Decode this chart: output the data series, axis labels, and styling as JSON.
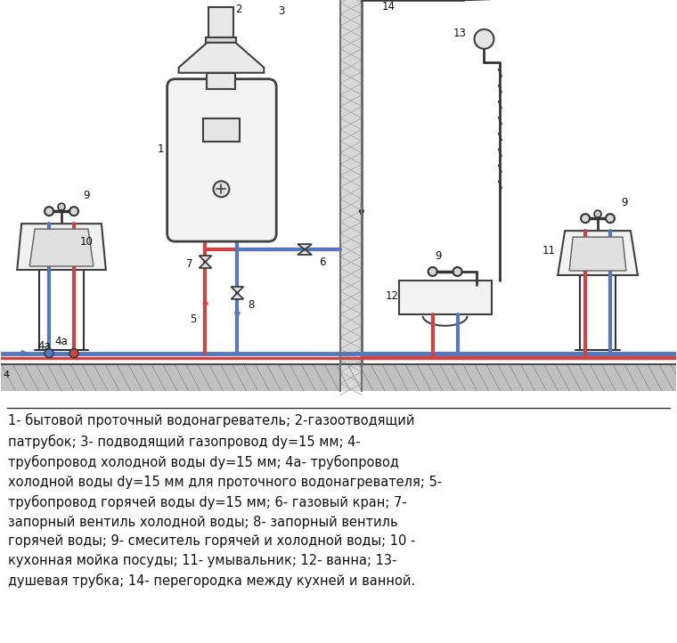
{
  "background_color": "#ffffff",
  "cold_color": "#5577bb",
  "hot_color": "#cc4444",
  "pipe_dark": "#333333",
  "wall_fill": "#cccccc",
  "text_color": "#111111",
  "legend": "1- бытовой проточный водонагреватель; 2-газоотводящий\nпатрубок; 3- подводящий газопровод dy=15 мм; 4-\nтрубопровод холодной воды dy=15 мм; 4а- трубопровод\nхолодной воды dy=15 мм для проточного водонагревателя; 5-\nтрубопровод горячей воды dy=15 мм; 6- газовый кран; 7-\nзапорный вентиль холодной воды; 8- запорный вентиль\nгорячей воды; 9- смеситель горячей и холодной воды; 10 -\nкухонная мойка посуды; 11- умывальник; 12- ванна; 13-\nдушевая трубка; 14- перегородка между кухней и ванной.",
  "figsize": [
    7.6,
    7.22
  ],
  "dpi": 100
}
